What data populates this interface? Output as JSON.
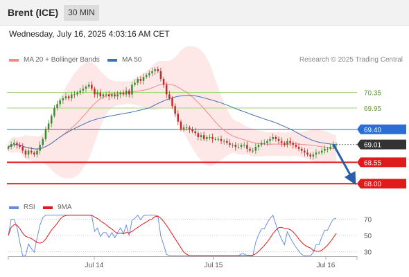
{
  "header": {
    "title": "Brent (ICE)",
    "timeframe": "30 MIN"
  },
  "datetime": "Wednesday, July 16, 2025 4:03:16 AM CET",
  "legend": {
    "ma20_label": "MA 20 + Bollinger Bands",
    "ma50_label": "MA 50",
    "rsi_label": "RSI",
    "rsi_ma_label": "9MA"
  },
  "copyright": "Research © 2025 Trading Central",
  "colors": {
    "candle_up": "#3a8a2e",
    "candle_down": "#c62828",
    "ma20": "#f28a8a",
    "ma50": "#3f6fb5",
    "bollinger_fill": "#fde3e3",
    "resistance": "#9fd47a",
    "support": "#e01b1b",
    "pivot": "#2b6fd6",
    "last_price": "#333333",
    "rsi": "#6a8de0",
    "rsi_ma": "#e01b1b",
    "arrow": "#2b5ea8"
  },
  "chart_data": [
    {
      "type": "candlestick",
      "title": "Brent (ICE)",
      "timeframe": "30 MIN",
      "x_labels": [
        "Jul 14",
        "Jul 15",
        "Jul 16"
      ],
      "ylim": [
        67.7,
        70.95
      ],
      "levels": [
        {
          "label": "70.35",
          "value": 70.35,
          "kind": "resistance"
        },
        {
          "label": "69.95",
          "value": 69.95,
          "kind": "resistance"
        },
        {
          "label": "69.40",
          "value": 69.4,
          "kind": "pivot"
        },
        {
          "label": "69.01",
          "value": 69.01,
          "kind": "last"
        },
        {
          "label": "68.55",
          "value": 68.55,
          "kind": "support"
        },
        {
          "label": "68.00",
          "value": 68.0,
          "kind": "support"
        }
      ],
      "projection": {
        "from": 69.01,
        "to": 68.0
      },
      "close": [
        68.95,
        69.02,
        69.05,
        69.0,
        68.95,
        68.85,
        68.75,
        68.85,
        68.8,
        68.75,
        68.85,
        69.0,
        69.15,
        69.4,
        69.55,
        69.75,
        69.95,
        70.05,
        70.15,
        70.2,
        70.25,
        70.2,
        70.3,
        70.3,
        70.35,
        70.4,
        70.45,
        70.5,
        70.55,
        70.45,
        70.3,
        70.35,
        70.25,
        70.3,
        70.3,
        70.25,
        70.3,
        70.25,
        70.3,
        70.35,
        70.3,
        70.4,
        70.3,
        70.55,
        70.6,
        70.7,
        70.65,
        70.75,
        70.8,
        70.85,
        70.9,
        70.95,
        70.9,
        70.7,
        70.55,
        70.3,
        70.2,
        70.0,
        69.8,
        69.6,
        69.4,
        69.45,
        69.45,
        69.4,
        69.35,
        69.3,
        69.2,
        69.25,
        69.15,
        69.2,
        69.2,
        69.15,
        69.15,
        69.15,
        69.1,
        69.1,
        69.05,
        69.0,
        69.0,
        68.95,
        68.95,
        69.0,
        69.0,
        68.9,
        68.85,
        68.85,
        68.95,
        69.0,
        69.05,
        69.05,
        69.1,
        69.15,
        69.2,
        69.15,
        69.1,
        69.05,
        69.0,
        69.1,
        69.05,
        69.0,
        68.95,
        68.9,
        68.85,
        68.8,
        68.75,
        68.7,
        68.75,
        68.8,
        68.8,
        68.85,
        68.9,
        68.9,
        68.95,
        69.0,
        69.01
      ]
    },
    {
      "type": "line",
      "title": "RSI",
      "series": [
        {
          "name": "RSI"
        },
        {
          "name": "9MA"
        }
      ],
      "ylim": [
        20,
        80
      ],
      "y_ticks": [
        70,
        50,
        30
      ]
    }
  ]
}
